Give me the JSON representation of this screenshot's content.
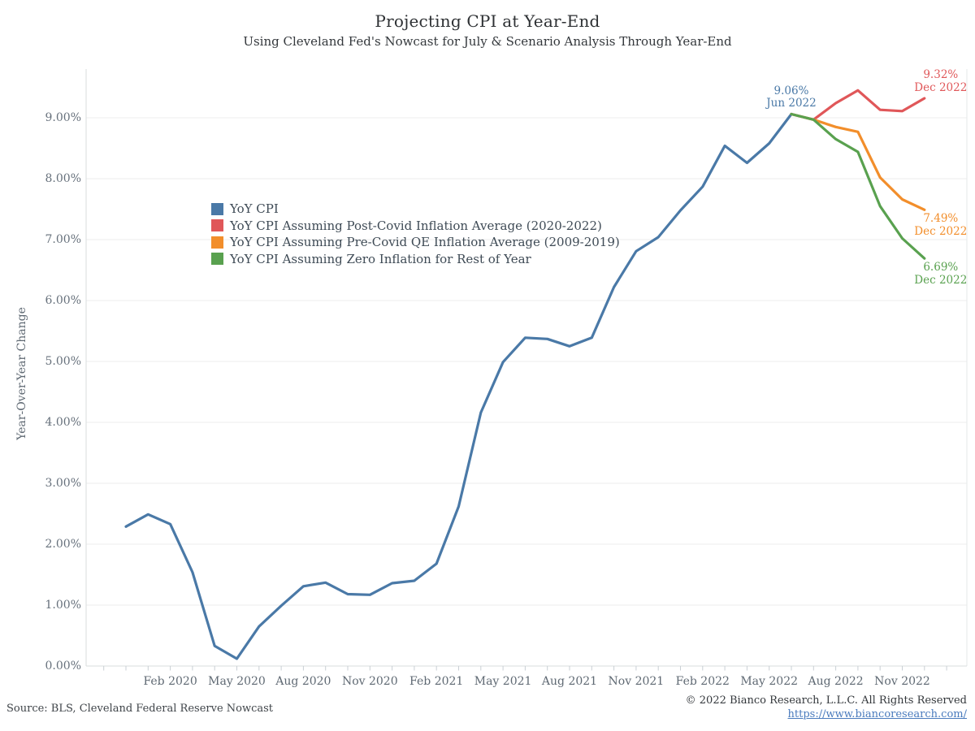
{
  "header": {
    "title": "Projecting CPI at Year-End",
    "subtitle": "Using Cleveland Fed's Nowcast for July & Scenario Analysis Through Year-End"
  },
  "y_axis": {
    "title": "Year-Over-Year Change"
  },
  "footer": {
    "source": "Source: BLS, Cleveland Federal Reserve Nowcast",
    "copyright": "© 2022 Bianco Research, L.L.C. All Rights Reserved",
    "link_text": "https://www.biancoresearch.com/"
  },
  "colors": {
    "blue": "#4A79A7",
    "red": "#E05759",
    "orange": "#F28E2B",
    "green": "#59A14F"
  },
  "legend": {
    "items": [
      {
        "color": "blue",
        "label": "YoY CPI"
      },
      {
        "color": "red",
        "label": "YoY CPI Assuming Post-Covid Inflation Average (2020-2022)"
      },
      {
        "color": "orange",
        "label": "YoY CPI Assuming Pre-Covid QE Inflation Average (2009-2019)"
      },
      {
        "color": "green",
        "label": "YoY CPI Assuming Zero Inflation for Rest of Year"
      }
    ]
  },
  "chart_data": {
    "type": "line",
    "x_range": [
      "Dec 2019",
      "Dec 2022"
    ],
    "x_tick_labels": [
      "Feb 2020",
      "May 2020",
      "Aug 2020",
      "Nov 2020",
      "Feb 2021",
      "May 2021",
      "Aug 2021",
      "Nov 2021",
      "Feb 2022",
      "May 2022",
      "Aug 2022",
      "Nov 2022"
    ],
    "x_tick_month_index": [
      2,
      5,
      8,
      11,
      14,
      17,
      20,
      23,
      26,
      29,
      32,
      35
    ],
    "y_tick_labels": [
      "0.00%",
      "1.00%",
      "2.00%",
      "3.00%",
      "4.00%",
      "5.00%",
      "6.00%",
      "7.00%",
      "8.00%",
      "9.00%"
    ],
    "y_tick_values": [
      0,
      1,
      2,
      3,
      4,
      5,
      6,
      7,
      8,
      9
    ],
    "ylabel": "Year-Over-Year Change",
    "ylim": [
      0,
      9.8
    ],
    "grid": "horizontal",
    "legend_position": "upper-left-inside",
    "series": [
      {
        "name": "YoY CPI",
        "color": "blue",
        "start_month_index": 0,
        "start_month": "Dec 2019",
        "values": [
          2.29,
          2.49,
          2.33,
          1.54,
          0.33,
          0.12,
          0.65,
          0.99,
          1.31,
          1.37,
          1.18,
          1.17,
          1.36,
          1.4,
          1.68,
          2.62,
          4.16,
          4.99,
          5.39,
          5.37,
          5.25,
          5.39,
          6.22,
          6.81,
          7.04,
          7.48,
          7.87,
          8.54,
          8.26,
          8.58,
          9.06
        ],
        "annotation": {
          "value": "9.06%",
          "date": "Jun 2022",
          "placement": "above-center"
        }
      },
      {
        "name": "YoY CPI Assuming Post-Covid Inflation Average (2020-2022)",
        "color": "red",
        "start_month_index": 30,
        "start_month": "Jun 2022",
        "values": [
          9.06,
          8.97,
          9.24,
          9.45,
          9.13,
          9.11,
          9.32
        ],
        "annotation": {
          "value": "9.32%",
          "date": "Dec 2022",
          "placement": "above-right"
        }
      },
      {
        "name": "YoY CPI Assuming Pre-Covid QE Inflation Average (2009-2019)",
        "color": "orange",
        "start_month_index": 30,
        "start_month": "Jun 2022",
        "values": [
          9.06,
          8.97,
          8.85,
          8.77,
          8.02,
          7.66,
          7.49
        ],
        "annotation": {
          "value": "7.49%",
          "date": "Dec 2022",
          "placement": "below-right"
        }
      },
      {
        "name": "YoY CPI Assuming Zero Inflation for Rest of Year",
        "color": "green",
        "start_month_index": 30,
        "start_month": "Jun 2022",
        "values": [
          9.06,
          8.97,
          8.65,
          8.44,
          7.55,
          7.02,
          6.69
        ],
        "annotation": {
          "value": "6.69%",
          "date": "Dec 2022",
          "placement": "below-right"
        }
      }
    ]
  }
}
